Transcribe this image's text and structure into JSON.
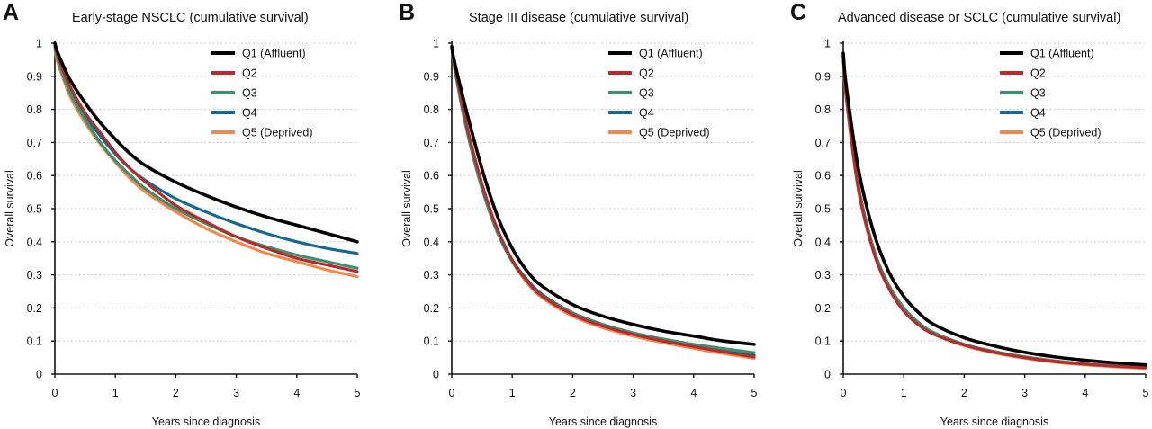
{
  "colors": {
    "Q1 (Affluent)": "#000000",
    "Q2": "#b32d2e",
    "Q3": "#3f8f6f",
    "Q4": "#16698e",
    "Q5 (Deprived)": "#f0894b"
  },
  "chart_data": [
    {
      "letter": "A",
      "type": "line",
      "title": "Early-stage NSCLC (cumulative survival)",
      "xlabel": "Years since diagnosis",
      "ylabel": "Overall survival",
      "xlim": [
        0,
        5
      ],
      "ylim": [
        0,
        1
      ],
      "xticks": [
        "0",
        "1",
        "2",
        "3",
        "4",
        "5"
      ],
      "yticks": [
        "0",
        "0.1",
        "0.2",
        "0.3",
        "0.4",
        "0.5",
        "0.6",
        "0.7",
        "0.8",
        "0.9",
        "1"
      ],
      "grid": "horizontal dotted",
      "legend_position": "top-right",
      "x": [
        0,
        0.05,
        0.25,
        0.5,
        0.75,
        1,
        1.25,
        1.5,
        2,
        2.5,
        3,
        3.5,
        4,
        4.5,
        5
      ],
      "series": [
        {
          "name": "Q1 (Affluent)",
          "values": [
            1.0,
            0.97,
            0.89,
            0.82,
            0.76,
            0.71,
            0.665,
            0.63,
            0.58,
            0.54,
            0.505,
            0.475,
            0.45,
            0.425,
            0.4
          ]
        },
        {
          "name": "Q2",
          "values": [
            1.0,
            0.96,
            0.87,
            0.79,
            0.73,
            0.67,
            0.62,
            0.58,
            0.51,
            0.46,
            0.415,
            0.38,
            0.35,
            0.33,
            0.31
          ]
        },
        {
          "name": "Q3",
          "values": [
            0.99,
            0.95,
            0.85,
            0.77,
            0.7,
            0.645,
            0.6,
            0.56,
            0.5,
            0.455,
            0.415,
            0.385,
            0.36,
            0.34,
            0.32
          ]
        },
        {
          "name": "Q4",
          "values": [
            1.0,
            0.96,
            0.86,
            0.78,
            0.72,
            0.665,
            0.62,
            0.585,
            0.53,
            0.49,
            0.455,
            0.425,
            0.4,
            0.38,
            0.365
          ]
        },
        {
          "name": "Q5 (Deprived)",
          "values": [
            0.98,
            0.94,
            0.84,
            0.76,
            0.695,
            0.64,
            0.59,
            0.55,
            0.49,
            0.44,
            0.4,
            0.365,
            0.34,
            0.315,
            0.295
          ]
        }
      ]
    },
    {
      "letter": "B",
      "type": "line",
      "title": "Stage III disease (cumulative survival)",
      "xlabel": "Years since diagnosis",
      "ylabel": "Overall survival",
      "xlim": [
        0,
        5
      ],
      "ylim": [
        0,
        1
      ],
      "xticks": [
        "0",
        "1",
        "2",
        "3",
        "4",
        "5"
      ],
      "yticks": [
        "0",
        "0.1",
        "0.2",
        "0.3",
        "0.4",
        "0.5",
        "0.6",
        "0.7",
        "0.8",
        "0.9",
        "1"
      ],
      "grid": "horizontal dotted",
      "legend_position": "top-right",
      "x": [
        0,
        0.05,
        0.25,
        0.5,
        0.75,
        1,
        1.25,
        1.5,
        2,
        2.5,
        3,
        3.5,
        4,
        4.5,
        5
      ],
      "series": [
        {
          "name": "Q1 (Affluent)",
          "values": [
            0.99,
            0.94,
            0.79,
            0.62,
            0.48,
            0.38,
            0.31,
            0.265,
            0.21,
            0.175,
            0.15,
            0.13,
            0.115,
            0.1,
            0.09
          ]
        },
        {
          "name": "Q2",
          "values": [
            0.99,
            0.93,
            0.75,
            0.575,
            0.44,
            0.345,
            0.28,
            0.235,
            0.18,
            0.145,
            0.12,
            0.1,
            0.083,
            0.067,
            0.052
          ]
        },
        {
          "name": "Q3",
          "values": [
            0.99,
            0.92,
            0.735,
            0.56,
            0.43,
            0.34,
            0.28,
            0.235,
            0.185,
            0.15,
            0.125,
            0.106,
            0.09,
            0.077,
            0.065
          ]
        },
        {
          "name": "Q4",
          "values": [
            0.99,
            0.93,
            0.745,
            0.57,
            0.44,
            0.345,
            0.285,
            0.24,
            0.185,
            0.15,
            0.123,
            0.103,
            0.086,
            0.07,
            0.057
          ]
        },
        {
          "name": "Q5 (Deprived)",
          "values": [
            0.99,
            0.93,
            0.745,
            0.57,
            0.435,
            0.34,
            0.275,
            0.23,
            0.175,
            0.14,
            0.115,
            0.095,
            0.078,
            0.062,
            0.048
          ]
        }
      ]
    },
    {
      "letter": "C",
      "type": "line",
      "title": "Advanced disease or SCLC (cumulative survival)",
      "xlabel": "Years since diagnosis",
      "ylabel": "Overall survival",
      "xlim": [
        0,
        5
      ],
      "ylim": [
        0,
        1
      ],
      "xticks": [
        "0",
        "1",
        "2",
        "3",
        "4",
        "5"
      ],
      "yticks": [
        "0",
        "0.1",
        "0.2",
        "0.3",
        "0.4",
        "0.5",
        "0.6",
        "0.7",
        "0.8",
        "0.9",
        "1"
      ],
      "grid": "horizontal dotted",
      "legend_position": "top-right",
      "x": [
        0,
        0.05,
        0.25,
        0.5,
        0.75,
        1,
        1.25,
        1.5,
        2,
        2.5,
        3,
        3.5,
        4,
        4.5,
        5
      ],
      "series": [
        {
          "name": "Q1 (Affluent)",
          "values": [
            0.97,
            0.87,
            0.62,
            0.43,
            0.31,
            0.235,
            0.185,
            0.15,
            0.11,
            0.085,
            0.066,
            0.052,
            0.042,
            0.034,
            0.028
          ]
        },
        {
          "name": "Q2",
          "values": [
            0.96,
            0.84,
            0.56,
            0.37,
            0.26,
            0.19,
            0.148,
            0.12,
            0.088,
            0.066,
            0.05,
            0.038,
            0.03,
            0.024,
            0.02
          ]
        },
        {
          "name": "Q3",
          "values": [
            0.96,
            0.845,
            0.57,
            0.38,
            0.27,
            0.2,
            0.155,
            0.125,
            0.09,
            0.068,
            0.052,
            0.04,
            0.031,
            0.025,
            0.02
          ]
        },
        {
          "name": "Q4",
          "values": [
            0.96,
            0.845,
            0.57,
            0.38,
            0.27,
            0.2,
            0.155,
            0.125,
            0.09,
            0.068,
            0.052,
            0.04,
            0.031,
            0.025,
            0.02
          ]
        },
        {
          "name": "Q5 (Deprived)",
          "values": [
            0.95,
            0.83,
            0.555,
            0.37,
            0.26,
            0.195,
            0.15,
            0.12,
            0.086,
            0.064,
            0.048,
            0.036,
            0.028,
            0.022,
            0.017
          ]
        }
      ]
    }
  ]
}
